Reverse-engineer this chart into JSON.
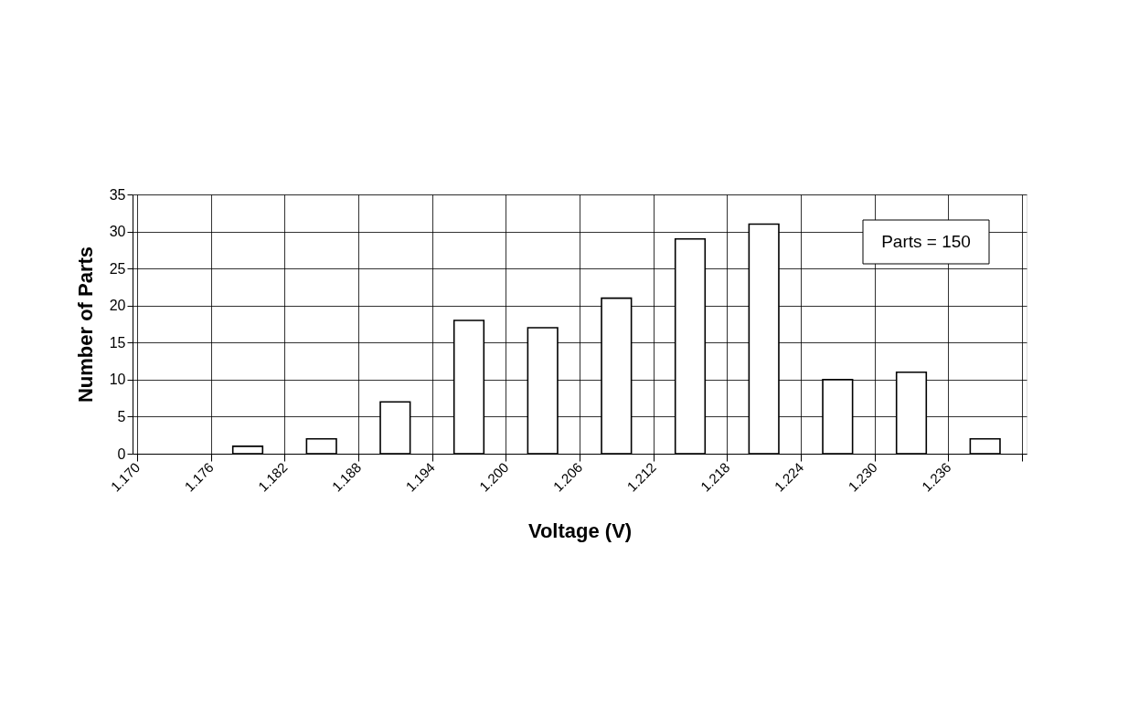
{
  "chart_data": {
    "type": "histogram",
    "xlabel": "Voltage (V)",
    "ylabel": "Number of Parts",
    "bins": [
      1.17,
      1.176,
      1.182,
      1.188,
      1.194,
      1.2,
      1.206,
      1.212,
      1.218,
      1.224,
      1.23,
      1.236,
      1.242
    ],
    "values": [
      0,
      1,
      2,
      7,
      18,
      17,
      21,
      29,
      31,
      10,
      11,
      2
    ],
    "color": "#ffffff",
    "xlim": [
      1.17,
      1.242
    ],
    "xticks": [
      {
        "value": 1.17,
        "label": "1.170"
      },
      {
        "value": 1.176,
        "label": "1.176"
      },
      {
        "value": 1.182,
        "label": "1.182"
      },
      {
        "value": 1.188,
        "label": "1.188"
      },
      {
        "value": 1.194,
        "label": "1.194"
      },
      {
        "value": 1.2,
        "label": "1.200"
      },
      {
        "value": 1.206,
        "label": "1.206"
      },
      {
        "value": 1.212,
        "label": "1.212"
      },
      {
        "value": 1.218,
        "label": "1.218"
      },
      {
        "value": 1.224,
        "label": "1.224"
      },
      {
        "value": 1.23,
        "label": "1.230"
      },
      {
        "value": 1.236,
        "label": "1.236"
      },
      {
        "value": 1.242,
        "label": null
      }
    ],
    "ylim": [
      0,
      35
    ],
    "yticks": [
      0,
      5,
      10,
      15,
      20,
      25,
      30,
      35
    ],
    "grid": true,
    "annotations": [
      "Parts = 150"
    ]
  }
}
